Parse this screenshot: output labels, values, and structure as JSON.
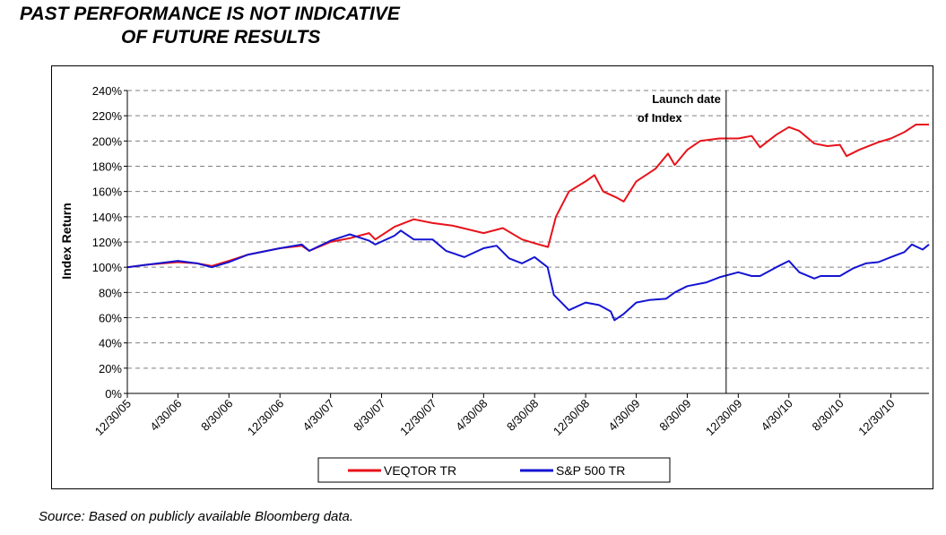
{
  "warning": {
    "line1": "PAST PERFORMANCE IS NOT INDICATIVE",
    "line2": "OF FUTURE RESULTS"
  },
  "source": "Source: Based on publicly available Bloomberg data.",
  "chart_data": {
    "type": "line",
    "title": "",
    "xlabel": "",
    "ylabel": "Index Return",
    "ylim": [
      0,
      240
    ],
    "y_ticks": [
      "0%",
      "20%",
      "40%",
      "60%",
      "80%",
      "100%",
      "120%",
      "140%",
      "160%",
      "180%",
      "200%",
      "220%",
      "240%"
    ],
    "x_ticks": [
      "12/30/05",
      "4/30/06",
      "8/30/06",
      "12/30/06",
      "4/30/07",
      "8/30/07",
      "12/30/07",
      "4/30/08",
      "8/30/08",
      "12/30/08",
      "4/30/09",
      "8/30/09",
      "12/30/09",
      "4/30/10",
      "8/30/10",
      "12/30/10"
    ],
    "xlim": [
      "2005-12-30",
      "2011-03-31"
    ],
    "grid": "horizontal dashed",
    "legend": "bottom",
    "annotation": {
      "text_line1": "Launch date",
      "text_line2": "of Index",
      "x": "2009-12-01"
    },
    "series": [
      {
        "name": "VEQTOR TR",
        "color": "#e8121a",
        "points": [
          [
            "2005-12-30",
            100
          ],
          [
            "2006-02-15",
            102
          ],
          [
            "2006-04-30",
            104
          ],
          [
            "2006-06-15",
            103
          ],
          [
            "2006-07-20",
            101
          ],
          [
            "2006-08-30",
            105
          ],
          [
            "2006-10-15",
            110
          ],
          [
            "2006-12-30",
            115
          ],
          [
            "2007-02-20",
            117
          ],
          [
            "2007-03-10",
            113
          ],
          [
            "2007-04-30",
            120
          ],
          [
            "2007-06-15",
            123
          ],
          [
            "2007-07-31",
            127
          ],
          [
            "2007-08-15",
            122
          ],
          [
            "2007-09-30",
            132
          ],
          [
            "2007-11-15",
            138
          ],
          [
            "2007-12-30",
            135
          ],
          [
            "2008-02-15",
            133
          ],
          [
            "2008-04-30",
            127
          ],
          [
            "2008-06-15",
            131
          ],
          [
            "2008-07-31",
            122
          ],
          [
            "2008-08-30",
            119
          ],
          [
            "2008-10-01",
            116
          ],
          [
            "2008-10-20",
            140
          ],
          [
            "2008-11-20",
            160
          ],
          [
            "2008-12-30",
            168
          ],
          [
            "2009-01-20",
            173
          ],
          [
            "2009-02-10",
            160
          ],
          [
            "2009-03-15",
            155
          ],
          [
            "2009-03-31",
            152
          ],
          [
            "2009-04-30",
            168
          ],
          [
            "2009-06-15",
            178
          ],
          [
            "2009-07-15",
            190
          ],
          [
            "2009-07-31",
            181
          ],
          [
            "2009-08-30",
            193
          ],
          [
            "2009-09-30",
            200
          ],
          [
            "2009-11-15",
            202
          ],
          [
            "2009-12-30",
            202
          ],
          [
            "2010-01-31",
            204
          ],
          [
            "2010-02-20",
            195
          ],
          [
            "2010-03-31",
            205
          ],
          [
            "2010-04-30",
            211
          ],
          [
            "2010-05-25",
            208
          ],
          [
            "2010-06-30",
            198
          ],
          [
            "2010-07-31",
            196
          ],
          [
            "2010-08-30",
            197
          ],
          [
            "2010-09-15",
            188
          ],
          [
            "2010-10-15",
            193
          ],
          [
            "2010-11-30",
            199
          ],
          [
            "2010-12-30",
            202
          ],
          [
            "2011-01-31",
            207
          ],
          [
            "2011-02-28",
            213
          ],
          [
            "2011-03-31",
            213
          ]
        ]
      },
      {
        "name": "S&P 500 TR",
        "color": "#1414d2",
        "points": [
          [
            "2005-12-30",
            100
          ],
          [
            "2006-02-15",
            102
          ],
          [
            "2006-04-30",
            105
          ],
          [
            "2006-06-15",
            103
          ],
          [
            "2006-07-20",
            100
          ],
          [
            "2006-08-30",
            104
          ],
          [
            "2006-10-15",
            110
          ],
          [
            "2006-12-30",
            115
          ],
          [
            "2007-02-20",
            118
          ],
          [
            "2007-03-10",
            113
          ],
          [
            "2007-04-30",
            121
          ],
          [
            "2007-06-15",
            126
          ],
          [
            "2007-07-31",
            121
          ],
          [
            "2007-08-15",
            118
          ],
          [
            "2007-09-30",
            125
          ],
          [
            "2007-10-15",
            129
          ],
          [
            "2007-11-15",
            122
          ],
          [
            "2007-12-30",
            122
          ],
          [
            "2008-01-31",
            113
          ],
          [
            "2008-03-15",
            108
          ],
          [
            "2008-04-30",
            115
          ],
          [
            "2008-05-31",
            117
          ],
          [
            "2008-06-30",
            107
          ],
          [
            "2008-07-31",
            103
          ],
          [
            "2008-08-30",
            108
          ],
          [
            "2008-09-30",
            100
          ],
          [
            "2008-10-15",
            78
          ],
          [
            "2008-11-20",
            66
          ],
          [
            "2008-12-30",
            72
          ],
          [
            "2009-01-31",
            70
          ],
          [
            "2009-02-28",
            65
          ],
          [
            "2009-03-09",
            58
          ],
          [
            "2009-03-31",
            63
          ],
          [
            "2009-04-30",
            72
          ],
          [
            "2009-05-31",
            74
          ],
          [
            "2009-07-10",
            75
          ],
          [
            "2009-07-31",
            80
          ],
          [
            "2009-08-30",
            85
          ],
          [
            "2009-10-15",
            88
          ],
          [
            "2009-11-15",
            92
          ],
          [
            "2009-12-30",
            96
          ],
          [
            "2010-01-31",
            93
          ],
          [
            "2010-02-20",
            93
          ],
          [
            "2010-03-31",
            100
          ],
          [
            "2010-04-30",
            105
          ],
          [
            "2010-05-25",
            96
          ],
          [
            "2010-06-30",
            91
          ],
          [
            "2010-07-15",
            93
          ],
          [
            "2010-08-30",
            93
          ],
          [
            "2010-09-30",
            99
          ],
          [
            "2010-10-31",
            103
          ],
          [
            "2010-11-30",
            104
          ],
          [
            "2010-12-30",
            108
          ],
          [
            "2011-01-31",
            112
          ],
          [
            "2011-02-18",
            118
          ],
          [
            "2011-03-16",
            114
          ],
          [
            "2011-03-31",
            118
          ]
        ]
      }
    ]
  }
}
